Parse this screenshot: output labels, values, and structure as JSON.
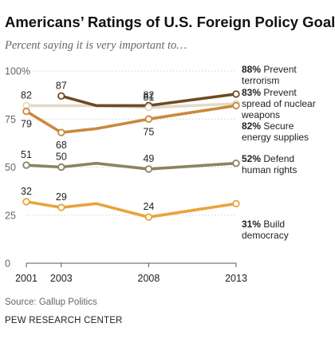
{
  "chart_data": {
    "type": "line",
    "title": "Americans’ Ratings of U.S. Foreign Policy Goals",
    "subtitle": "Percent saying it is very important to…",
    "ylim": [
      0,
      100
    ],
    "yticks": [
      "100%",
      "75",
      "50",
      "25",
      "0"
    ],
    "x_ticks": [
      "2001",
      "2003",
      "2008",
      "2013"
    ],
    "grid": true,
    "legend_placement": "right, at line ends",
    "series": [
      {
        "name": "Prevent terrorism",
        "legend_pct": "88%",
        "legend_lines": [
          "Prevent",
          "terrorism"
        ],
        "color": "#6e4a24",
        "points": [
          {
            "x": 2003,
            "y": 87
          },
          {
            "x": 2005,
            "y": 82
          },
          {
            "x": 2008,
            "y": 82
          },
          {
            "x": 2013,
            "y": 88
          }
        ],
        "labels": [
          {
            "x": 2003,
            "y": 87,
            "text": "87",
            "pos": "above"
          },
          {
            "x": 2008,
            "y": 82,
            "text": "82",
            "pos": "above"
          }
        ]
      },
      {
        "name": "Prevent spread of nuclear weapons",
        "legend_pct": "83%",
        "legend_lines": [
          "Prevent",
          "spread of nuclear",
          "weapons"
        ],
        "color": "#e3dcc8",
        "points": [
          {
            "x": 2001,
            "y": 82
          },
          {
            "x": 2003,
            "y": 82
          },
          {
            "x": 2005,
            "y": 82
          },
          {
            "x": 2008,
            "y": 81
          },
          {
            "x": 2013,
            "y": 83
          }
        ],
        "labels": [
          {
            "x": 2001,
            "y": 82,
            "text": "82",
            "pos": "above"
          },
          {
            "x": 2008,
            "y": 81,
            "text": "81",
            "pos": "above"
          }
        ]
      },
      {
        "name": "Secure energy supplies",
        "legend_pct": "82%",
        "legend_lines": [
          "Secure",
          "energy supplies"
        ],
        "color": "#c88a3c",
        "points": [
          {
            "x": 2001,
            "y": 79
          },
          {
            "x": 2003,
            "y": 68
          },
          {
            "x": 2005,
            "y": 70
          },
          {
            "x": 2008,
            "y": 75
          },
          {
            "x": 2013,
            "y": 82
          }
        ],
        "labels": [
          {
            "x": 2001,
            "y": 79,
            "text": "79",
            "pos": "below"
          },
          {
            "x": 2003,
            "y": 68,
            "text": "68",
            "pos": "below"
          },
          {
            "x": 2008,
            "y": 75,
            "text": "75",
            "pos": "below"
          }
        ]
      },
      {
        "name": "Defend human rights",
        "legend_pct": "52%",
        "legend_lines": [
          "Defend",
          "human rights"
        ],
        "color": "#8a8560",
        "points": [
          {
            "x": 2001,
            "y": 51
          },
          {
            "x": 2003,
            "y": 50
          },
          {
            "x": 2005,
            "y": 52
          },
          {
            "x": 2008,
            "y": 49
          },
          {
            "x": 2013,
            "y": 52
          }
        ],
        "labels": [
          {
            "x": 2001,
            "y": 51,
            "text": "51",
            "pos": "above"
          },
          {
            "x": 2003,
            "y": 50,
            "text": "50",
            "pos": "above"
          },
          {
            "x": 2008,
            "y": 49,
            "text": "49",
            "pos": "above"
          }
        ]
      },
      {
        "name": "Build democracy",
        "legend_pct": "31%",
        "legend_lines": [
          "Build",
          "democracy"
        ],
        "color": "#e8a43c",
        "points": [
          {
            "x": 2001,
            "y": 32
          },
          {
            "x": 2003,
            "y": 29
          },
          {
            "x": 2005,
            "y": 31
          },
          {
            "x": 2008,
            "y": 24
          },
          {
            "x": 2013,
            "y": 31
          }
        ],
        "labels": [
          {
            "x": 2001,
            "y": 32,
            "text": "32",
            "pos": "above"
          },
          {
            "x": 2003,
            "y": 29,
            "text": "29",
            "pos": "above"
          },
          {
            "x": 2008,
            "y": 24,
            "text": "24",
            "pos": "above"
          }
        ]
      }
    ],
    "source": "Source: Gallup Politics",
    "organization": "PEW RESEARCH CENTER"
  }
}
